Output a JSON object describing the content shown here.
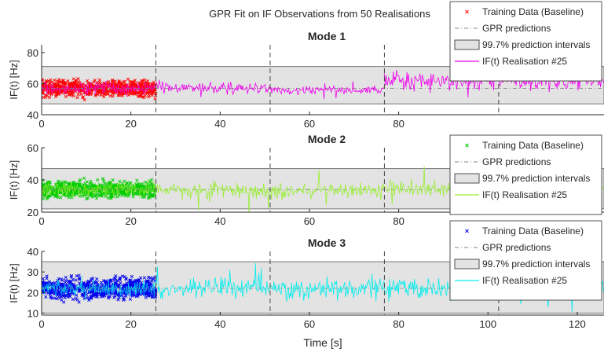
{
  "suptitle": "GPR Fit on IF Observations from 50 Realisations",
  "xlabel": "Time [s]",
  "vlines_x": [
    25.6,
    51.2,
    76.8,
    102.4
  ],
  "colors": {
    "grid_line": "#444444",
    "band_fill": "#e3e3e3",
    "band_edge": "#555555"
  },
  "legend_labels": {
    "training": "Training Data (Baseline)",
    "gpr": "GPR predictions",
    "band": "99.7% prediction intervals",
    "realisation": "IF(t) Realisation #25"
  },
  "chart_data": [
    {
      "type": "line",
      "title": "Mode 1",
      "ylabel": "IF(t) [Hz]",
      "xlim": [
        0,
        126
      ],
      "ylim": [
        40,
        85
      ],
      "xticks": [
        0,
        20,
        40,
        60,
        80
      ],
      "yticks": [
        40,
        60,
        80
      ],
      "training_color": "#ff0000",
      "series_color": "#ee00ee",
      "series": [
        {
          "name": "Training Data (Baseline)",
          "x_range": [
            0,
            25.6
          ],
          "mean": 57,
          "spread": 5
        },
        {
          "name": "GPR predictions",
          "x_range": [
            0,
            126
          ],
          "mean": 57
        },
        {
          "name": "99.7% prediction intervals",
          "x_range": [
            0,
            126
          ],
          "lower": 47,
          "upper": 71
        },
        {
          "name": "IF(t) Realisation #25",
          "segments": [
            {
              "x_range": [
                25.6,
                51.2
              ],
              "mean": 57,
              "spread": 4
            },
            {
              "x_range": [
                51.2,
                76.8
              ],
              "mean": 56,
              "spread": 2.5
            },
            {
              "x_range": [
                76.8,
                126
              ],
              "mean": 62,
              "spread": 6
            }
          ]
        }
      ]
    },
    {
      "type": "line",
      "title": "Mode 2",
      "ylabel": "IF(t) [Hz]",
      "xlim": [
        0,
        126
      ],
      "ylim": [
        20,
        60
      ],
      "xticks": [
        0,
        20,
        40,
        60,
        80
      ],
      "yticks": [
        20,
        40,
        60
      ],
      "training_color": "#00cc00",
      "series_color": "#99ee33",
      "series": [
        {
          "name": "Training Data (Baseline)",
          "x_range": [
            0,
            25.6
          ],
          "mean": 34,
          "spread": 5
        },
        {
          "name": "GPR predictions",
          "x_range": [
            0,
            126
          ],
          "mean": 34
        },
        {
          "name": "99.7% prediction intervals",
          "x_range": [
            0,
            126
          ],
          "lower": 22,
          "upper": 47
        },
        {
          "name": "IF(t) Realisation #25",
          "segments": [
            {
              "x_range": [
                25.6,
                126
              ],
              "mean": 34,
              "spread": 5
            }
          ]
        }
      ]
    },
    {
      "type": "line",
      "title": "Mode 3",
      "ylabel": "IF(t) [Hz]",
      "xlim": [
        0,
        126
      ],
      "ylim": [
        9,
        40
      ],
      "xticks": [
        0,
        20,
        40,
        60,
        80,
        100,
        120
      ],
      "yticks": [
        10,
        20,
        30,
        40
      ],
      "training_color": "#0000ee",
      "series_color": "#00eeee",
      "series": [
        {
          "name": "Training Data (Baseline)",
          "x_range": [
            0,
            25.6
          ],
          "mean": 22,
          "spread": 5
        },
        {
          "name": "GPR predictions",
          "x_range": [
            0,
            126
          ],
          "mean": 22
        },
        {
          "name": "99.7% prediction intervals",
          "x_range": [
            0,
            126
          ],
          "lower": 10,
          "upper": 35
        },
        {
          "name": "IF(t) Realisation #25",
          "segments": [
            {
              "x_range": [
                25.6,
                126
              ],
              "mean": 22,
              "spread": 5
            }
          ]
        }
      ]
    }
  ]
}
